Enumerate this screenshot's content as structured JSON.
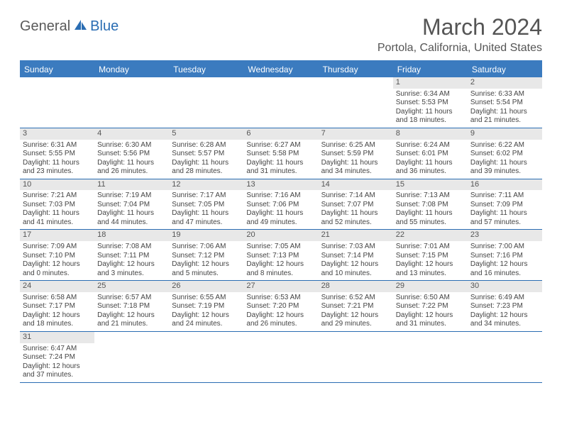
{
  "logo": {
    "general": "General",
    "blue": "Blue"
  },
  "title": "March 2024",
  "location": "Portola, California, United States",
  "colors": {
    "header_bg": "#3b7bbf",
    "border": "#2a6db3",
    "daynum_bg": "#e8e8e8",
    "text": "#444444"
  },
  "weekdays": [
    "Sunday",
    "Monday",
    "Tuesday",
    "Wednesday",
    "Thursday",
    "Friday",
    "Saturday"
  ],
  "weeks": [
    [
      null,
      null,
      null,
      null,
      null,
      {
        "n": "1",
        "sr": "Sunrise: 6:34 AM",
        "ss": "Sunset: 5:53 PM",
        "dl": "Daylight: 11 hours and 18 minutes."
      },
      {
        "n": "2",
        "sr": "Sunrise: 6:33 AM",
        "ss": "Sunset: 5:54 PM",
        "dl": "Daylight: 11 hours and 21 minutes."
      }
    ],
    [
      {
        "n": "3",
        "sr": "Sunrise: 6:31 AM",
        "ss": "Sunset: 5:55 PM",
        "dl": "Daylight: 11 hours and 23 minutes."
      },
      {
        "n": "4",
        "sr": "Sunrise: 6:30 AM",
        "ss": "Sunset: 5:56 PM",
        "dl": "Daylight: 11 hours and 26 minutes."
      },
      {
        "n": "5",
        "sr": "Sunrise: 6:28 AM",
        "ss": "Sunset: 5:57 PM",
        "dl": "Daylight: 11 hours and 28 minutes."
      },
      {
        "n": "6",
        "sr": "Sunrise: 6:27 AM",
        "ss": "Sunset: 5:58 PM",
        "dl": "Daylight: 11 hours and 31 minutes."
      },
      {
        "n": "7",
        "sr": "Sunrise: 6:25 AM",
        "ss": "Sunset: 5:59 PM",
        "dl": "Daylight: 11 hours and 34 minutes."
      },
      {
        "n": "8",
        "sr": "Sunrise: 6:24 AM",
        "ss": "Sunset: 6:01 PM",
        "dl": "Daylight: 11 hours and 36 minutes."
      },
      {
        "n": "9",
        "sr": "Sunrise: 6:22 AM",
        "ss": "Sunset: 6:02 PM",
        "dl": "Daylight: 11 hours and 39 minutes."
      }
    ],
    [
      {
        "n": "10",
        "sr": "Sunrise: 7:21 AM",
        "ss": "Sunset: 7:03 PM",
        "dl": "Daylight: 11 hours and 41 minutes."
      },
      {
        "n": "11",
        "sr": "Sunrise: 7:19 AM",
        "ss": "Sunset: 7:04 PM",
        "dl": "Daylight: 11 hours and 44 minutes."
      },
      {
        "n": "12",
        "sr": "Sunrise: 7:17 AM",
        "ss": "Sunset: 7:05 PM",
        "dl": "Daylight: 11 hours and 47 minutes."
      },
      {
        "n": "13",
        "sr": "Sunrise: 7:16 AM",
        "ss": "Sunset: 7:06 PM",
        "dl": "Daylight: 11 hours and 49 minutes."
      },
      {
        "n": "14",
        "sr": "Sunrise: 7:14 AM",
        "ss": "Sunset: 7:07 PM",
        "dl": "Daylight: 11 hours and 52 minutes."
      },
      {
        "n": "15",
        "sr": "Sunrise: 7:13 AM",
        "ss": "Sunset: 7:08 PM",
        "dl": "Daylight: 11 hours and 55 minutes."
      },
      {
        "n": "16",
        "sr": "Sunrise: 7:11 AM",
        "ss": "Sunset: 7:09 PM",
        "dl": "Daylight: 11 hours and 57 minutes."
      }
    ],
    [
      {
        "n": "17",
        "sr": "Sunrise: 7:09 AM",
        "ss": "Sunset: 7:10 PM",
        "dl": "Daylight: 12 hours and 0 minutes."
      },
      {
        "n": "18",
        "sr": "Sunrise: 7:08 AM",
        "ss": "Sunset: 7:11 PM",
        "dl": "Daylight: 12 hours and 3 minutes."
      },
      {
        "n": "19",
        "sr": "Sunrise: 7:06 AM",
        "ss": "Sunset: 7:12 PM",
        "dl": "Daylight: 12 hours and 5 minutes."
      },
      {
        "n": "20",
        "sr": "Sunrise: 7:05 AM",
        "ss": "Sunset: 7:13 PM",
        "dl": "Daylight: 12 hours and 8 minutes."
      },
      {
        "n": "21",
        "sr": "Sunrise: 7:03 AM",
        "ss": "Sunset: 7:14 PM",
        "dl": "Daylight: 12 hours and 10 minutes."
      },
      {
        "n": "22",
        "sr": "Sunrise: 7:01 AM",
        "ss": "Sunset: 7:15 PM",
        "dl": "Daylight: 12 hours and 13 minutes."
      },
      {
        "n": "23",
        "sr": "Sunrise: 7:00 AM",
        "ss": "Sunset: 7:16 PM",
        "dl": "Daylight: 12 hours and 16 minutes."
      }
    ],
    [
      {
        "n": "24",
        "sr": "Sunrise: 6:58 AM",
        "ss": "Sunset: 7:17 PM",
        "dl": "Daylight: 12 hours and 18 minutes."
      },
      {
        "n": "25",
        "sr": "Sunrise: 6:57 AM",
        "ss": "Sunset: 7:18 PM",
        "dl": "Daylight: 12 hours and 21 minutes."
      },
      {
        "n": "26",
        "sr": "Sunrise: 6:55 AM",
        "ss": "Sunset: 7:19 PM",
        "dl": "Daylight: 12 hours and 24 minutes."
      },
      {
        "n": "27",
        "sr": "Sunrise: 6:53 AM",
        "ss": "Sunset: 7:20 PM",
        "dl": "Daylight: 12 hours and 26 minutes."
      },
      {
        "n": "28",
        "sr": "Sunrise: 6:52 AM",
        "ss": "Sunset: 7:21 PM",
        "dl": "Daylight: 12 hours and 29 minutes."
      },
      {
        "n": "29",
        "sr": "Sunrise: 6:50 AM",
        "ss": "Sunset: 7:22 PM",
        "dl": "Daylight: 12 hours and 31 minutes."
      },
      {
        "n": "30",
        "sr": "Sunrise: 6:49 AM",
        "ss": "Sunset: 7:23 PM",
        "dl": "Daylight: 12 hours and 34 minutes."
      }
    ],
    [
      {
        "n": "31",
        "sr": "Sunrise: 6:47 AM",
        "ss": "Sunset: 7:24 PM",
        "dl": "Daylight: 12 hours and 37 minutes."
      },
      null,
      null,
      null,
      null,
      null,
      null
    ]
  ]
}
